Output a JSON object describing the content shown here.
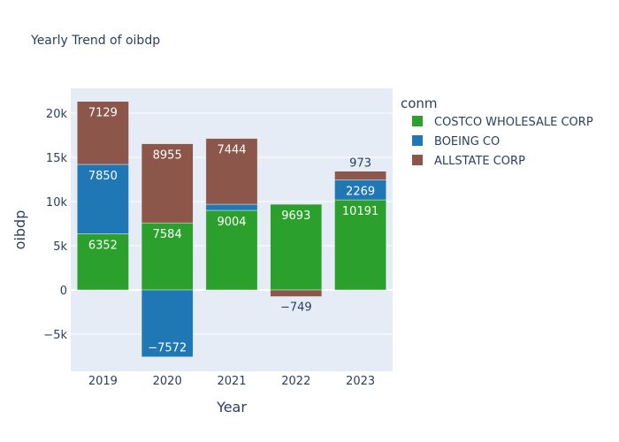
{
  "chart_data": {
    "type": "bar",
    "barmode": "relative",
    "title": "Yearly Trend of oibdp",
    "xlabel": "Year",
    "ylabel": "oibdp",
    "categories": [
      "2019",
      "2020",
      "2021",
      "2022",
      "2023"
    ],
    "ylim": [
      -9200,
      22800
    ],
    "yticks": [
      {
        "value": -5000,
        "label": "−5k"
      },
      {
        "value": 0,
        "label": "0"
      },
      {
        "value": 5000,
        "label": "5k"
      },
      {
        "value": 10000,
        "label": "10k"
      },
      {
        "value": 15000,
        "label": "15k"
      },
      {
        "value": 20000,
        "label": "20k"
      }
    ],
    "legend": {
      "title": "conm",
      "position": "right"
    },
    "grid": true,
    "series": [
      {
        "name": "COSTCO WHOLESALE CORP",
        "color": "#2ca02c",
        "values": [
          6352,
          7584,
          9004,
          9693,
          10191
        ],
        "labels": [
          "6352",
          "7584",
          "9004",
          "9693",
          "10191"
        ]
      },
      {
        "name": "BOEING CO",
        "color": "#1f77b4",
        "values": [
          7850,
          -7572,
          690,
          null,
          2269
        ],
        "labels": [
          "7850",
          "−7572",
          "",
          "",
          "2269"
        ]
      },
      {
        "name": "ALLSTATE CORP",
        "color": "#8c564b",
        "values": [
          7129,
          8955,
          7444,
          -749,
          973
        ],
        "labels": [
          "7129",
          "8955",
          "7444",
          "−749",
          "973"
        ]
      }
    ]
  }
}
